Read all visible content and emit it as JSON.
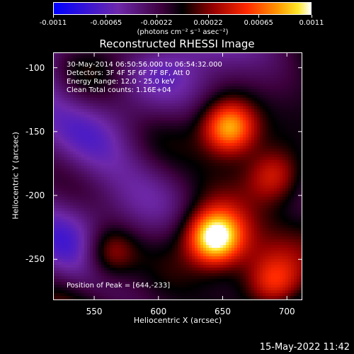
{
  "colorbar": {
    "tick_labels": [
      "-0.0011",
      "-0.00065",
      "-0.00022",
      "0.00022",
      "0.00065",
      "0.0011"
    ],
    "units": "(photons cm⁻² s⁻¹ asec⁻²)"
  },
  "title": "Reconstructed RHESSI Image",
  "overlay": {
    "time_range": "30-May-2014 06:50:56.000 to 06:54:32.000",
    "detectors": "Detectors: 3F 4F 5F 6F 7F 8F, Att 0",
    "energy": "Energy Range: 12.0 - 25.0 keV",
    "algorithm": "Clean     Total counts: 1.16E+04",
    "peak": "Position of Peak = [644,-233]"
  },
  "axes": {
    "xlabel": "Heliocentric X (arcsec)",
    "ylabel": "Heliocentric Y (arcsec)"
  },
  "timestamp": "15-May-2022 11:42",
  "chart_data": {
    "type": "heatmap",
    "title": "Reconstructed RHESSI Image",
    "xlabel": "Heliocentric X (arcsec)",
    "ylabel": "Heliocentric Y (arcsec)",
    "xlim": [
      518,
      712
    ],
    "ylim": [
      -282,
      -88
    ],
    "x_ticks": [
      550,
      600,
      650,
      700
    ],
    "y_ticks": [
      -100,
      -150,
      -200,
      -250
    ],
    "colorbar_range": [
      -0.0011,
      0.0011
    ],
    "peak": [
      644,
      -233
    ],
    "bright_sources": [
      {
        "x": 644,
        "y": -233,
        "level": 1.0
      },
      {
        "x": 655,
        "y": -147,
        "level": 0.85
      },
      {
        "x": 562,
        "y": -245,
        "level": 0.55
      },
      {
        "x": 690,
        "y": -185,
        "level": 0.45
      },
      {
        "x": 690,
        "y": -270,
        "level": 0.4
      }
    ],
    "colors": {
      "low": "#0000ff",
      "mid": "#6a2aa0",
      "high": "#ffffff"
    }
  }
}
